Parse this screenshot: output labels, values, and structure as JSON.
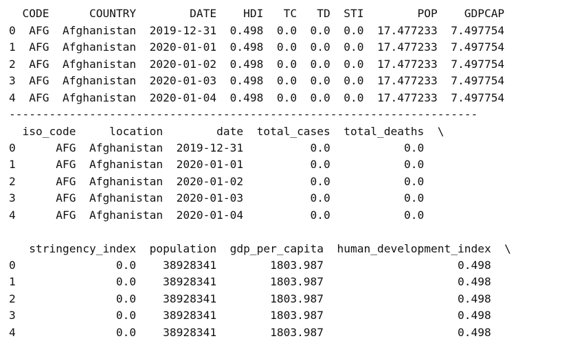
{
  "table1": {
    "header": "  CODE      COUNTRY        DATE    HDI   TC   TD  STI        POP    GDPCAP",
    "rows": [
      "0  AFG  Afghanistan  2019-12-31  0.498  0.0  0.0  0.0  17.477233  7.497754",
      "1  AFG  Afghanistan  2020-01-01  0.498  0.0  0.0  0.0  17.477233  7.497754",
      "2  AFG  Afghanistan  2020-01-02  0.498  0.0  0.0  0.0  17.477233  7.497754",
      "3  AFG  Afghanistan  2020-01-03  0.498  0.0  0.0  0.0  17.477233  7.497754",
      "4  AFG  Afghanistan  2020-01-04  0.498  0.0  0.0  0.0  17.477233  7.497754"
    ]
  },
  "separator": "----------------------------------------------------------------------",
  "table2": {
    "header": "  iso_code     location        date  total_cases  total_deaths  \\",
    "rows": [
      "0      AFG  Afghanistan  2019-12-31          0.0           0.0",
      "1      AFG  Afghanistan  2020-01-01          0.0           0.0",
      "2      AFG  Afghanistan  2020-01-02          0.0           0.0",
      "3      AFG  Afghanistan  2020-01-03          0.0           0.0",
      "4      AFG  Afghanistan  2020-01-04          0.0           0.0"
    ]
  },
  "table3": {
    "header": "   stringency_index  population  gdp_per_capita  human_development_index  \\",
    "rows": [
      "0               0.0    38928341        1803.987                    0.498",
      "1               0.0    38928341        1803.987                    0.498",
      "2               0.0    38928341        1803.987                    0.498",
      "3               0.0    38928341        1803.987                    0.498",
      "4               0.0    38928341        1803.987                    0.498"
    ]
  }
}
